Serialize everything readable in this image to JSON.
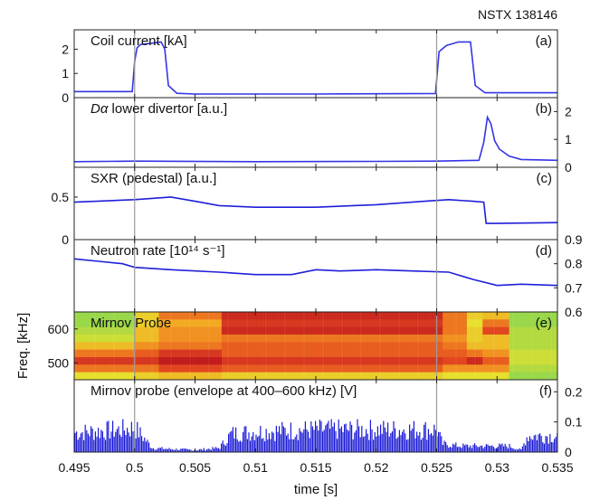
{
  "figure": {
    "title": "NSTX 138146",
    "xlabel": "time [s]",
    "xlim": [
      0.495,
      0.535
    ],
    "xticks": [
      "0.495",
      "0.5",
      "0.505",
      "0.51",
      "0.515",
      "0.52",
      "0.525",
      "0.53",
      "0.535"
    ],
    "vlines": [
      0.5,
      0.525
    ]
  },
  "chart_data": [
    {
      "type": "line",
      "panel": "(a)",
      "label_pre": "Coil current [kA]",
      "label_ital": "",
      "label_post": "",
      "ylim": [
        0,
        2.8
      ],
      "yticks": [
        "0",
        "1",
        "2"
      ],
      "yaxis_side": "left",
      "color": "#3535e6",
      "series": [
        {
          "x": [
            0.495,
            0.4998,
            0.5,
            0.5002,
            0.5005,
            0.5015,
            0.5022,
            0.5025,
            0.5028,
            0.5035,
            0.505,
            0.51,
            0.515,
            0.52,
            0.5249,
            0.5252,
            0.5258,
            0.5268,
            0.5278,
            0.5282,
            0.529,
            0.53,
            0.535
          ],
          "y": [
            0.25,
            0.25,
            1.5,
            2.05,
            2.2,
            2.25,
            2.3,
            2.0,
            0.5,
            0.18,
            0.15,
            0.15,
            0.15,
            0.16,
            0.17,
            1.9,
            2.15,
            2.3,
            2.3,
            0.5,
            0.2,
            0.2,
            0.2
          ]
        }
      ]
    },
    {
      "type": "line",
      "panel": "(b)",
      "label_pre": "",
      "label_ital": "Dα",
      "label_post": " lower divertor [a.u.]",
      "ylim": [
        0,
        2.5
      ],
      "yticks": [
        "0",
        "1",
        "2"
      ],
      "yaxis_side": "right",
      "color": "#3535e6",
      "series": [
        {
          "x": [
            0.495,
            0.5,
            0.51,
            0.52,
            0.525,
            0.5285,
            0.5289,
            0.5292,
            0.5295,
            0.5298,
            0.5302,
            0.531,
            0.532,
            0.535
          ],
          "y": [
            0.2,
            0.22,
            0.2,
            0.21,
            0.22,
            0.25,
            0.9,
            1.8,
            1.55,
            0.95,
            0.65,
            0.4,
            0.28,
            0.25
          ]
        }
      ]
    },
    {
      "type": "line",
      "panel": "(c)",
      "label_pre": "SXR (pedestal) [a.u.]",
      "label_ital": "",
      "label_post": "",
      "ylim": [
        0,
        0.85
      ],
      "yticks": [
        "0",
        "0.5"
      ],
      "yaxis_side": "left",
      "color": "#1f1fd9",
      "series": [
        {
          "x": [
            0.495,
            0.5,
            0.503,
            0.505,
            0.507,
            0.51,
            0.515,
            0.52,
            0.524,
            0.525,
            0.526,
            0.528,
            0.5289,
            0.5291,
            0.53,
            0.535
          ],
          "y": [
            0.44,
            0.47,
            0.5,
            0.45,
            0.4,
            0.38,
            0.38,
            0.41,
            0.45,
            0.46,
            0.47,
            0.45,
            0.44,
            0.19,
            0.19,
            0.2
          ]
        }
      ]
    },
    {
      "type": "line",
      "panel": "(d)",
      "label_pre": "Neutron rate [10¹⁴ s⁻¹]",
      "label_ital": "",
      "label_post": "",
      "ylim": [
        0.6,
        0.9
      ],
      "yticks": [
        "0.6",
        "0.7",
        "0.8",
        "0.9"
      ],
      "yaxis_side": "right",
      "color": "#1f1fd9",
      "series": [
        {
          "x": [
            0.495,
            0.497,
            0.499,
            0.5,
            0.503,
            0.507,
            0.51,
            0.513,
            0.515,
            0.517,
            0.52,
            0.523,
            0.526,
            0.528,
            0.53,
            0.532,
            0.535
          ],
          "y": [
            0.82,
            0.81,
            0.8,
            0.785,
            0.775,
            0.765,
            0.755,
            0.755,
            0.775,
            0.77,
            0.775,
            0.77,
            0.765,
            0.735,
            0.71,
            0.715,
            0.71
          ]
        }
      ]
    },
    {
      "type": "heatmap",
      "panel": "(e)",
      "label_pre": "Mirnov Probe",
      "label_ital": "",
      "label_post": "",
      "ylabel": "Freq. [kHz]",
      "ylim": [
        450,
        650
      ],
      "yticks": [
        "500",
        "600"
      ],
      "yaxis_side": "left",
      "time_edges": [
        0.495,
        0.5,
        0.502,
        0.5072,
        0.5255,
        0.5275,
        0.5288,
        0.531,
        0.535
      ],
      "freq_rows": [
        650,
        625,
        600,
        575,
        550,
        525,
        500,
        475,
        450
      ],
      "colorscale": [
        "#1e78c8",
        "#2ec4c4",
        "#8fd64a",
        "#e6e02a",
        "#f4a21e",
        "#e5481c",
        "#c0181b"
      ],
      "intensity": [
        [
          0.35,
          0.55,
          0.75,
          0.95,
          0.75,
          0.55,
          0.6,
          0.35
        ],
        [
          0.35,
          0.55,
          0.65,
          0.9,
          0.75,
          0.5,
          0.75,
          0.35
        ],
        [
          0.4,
          0.6,
          0.7,
          0.95,
          0.75,
          0.55,
          0.85,
          0.4
        ],
        [
          0.45,
          0.6,
          0.7,
          0.75,
          0.7,
          0.55,
          0.6,
          0.4
        ],
        [
          0.6,
          0.7,
          0.75,
          0.8,
          0.75,
          0.6,
          0.6,
          0.4
        ],
        [
          0.75,
          0.8,
          0.9,
          0.8,
          0.8,
          0.75,
          0.7,
          0.45
        ],
        [
          0.9,
          0.9,
          1.0,
          0.9,
          0.85,
          0.95,
          0.8,
          0.45
        ],
        [
          0.75,
          0.75,
          0.85,
          0.8,
          0.7,
          0.7,
          0.7,
          0.4
        ],
        [
          0.5,
          0.55,
          0.6,
          0.55,
          0.5,
          0.5,
          0.5,
          0.35
        ]
      ]
    },
    {
      "type": "area",
      "panel": "(f)",
      "label_pre": "Mirnov probe (envelope at 400–600 kHz) [V]",
      "label_ital": "",
      "label_post": "",
      "ylim": [
        0,
        0.24
      ],
      "yticks": [
        "0",
        "0.1",
        "0.2"
      ],
      "yaxis_side": "right",
      "color": "#1a1ad6",
      "envelope": {
        "x": [
          0.495,
          0.499,
          0.5,
          0.5015,
          0.503,
          0.505,
          0.507,
          0.508,
          0.51,
          0.515,
          0.52,
          0.525,
          0.5255,
          0.527,
          0.529,
          0.531,
          0.532,
          0.5325,
          0.535
        ],
        "y": [
          0.095,
          0.11,
          0.12,
          0.02,
          0.015,
          0.01,
          0.02,
          0.09,
          0.1,
          0.11,
          0.11,
          0.11,
          0.04,
          0.03,
          0.03,
          0.03,
          0.01,
          0.08,
          0.08
        ]
      }
    }
  ]
}
